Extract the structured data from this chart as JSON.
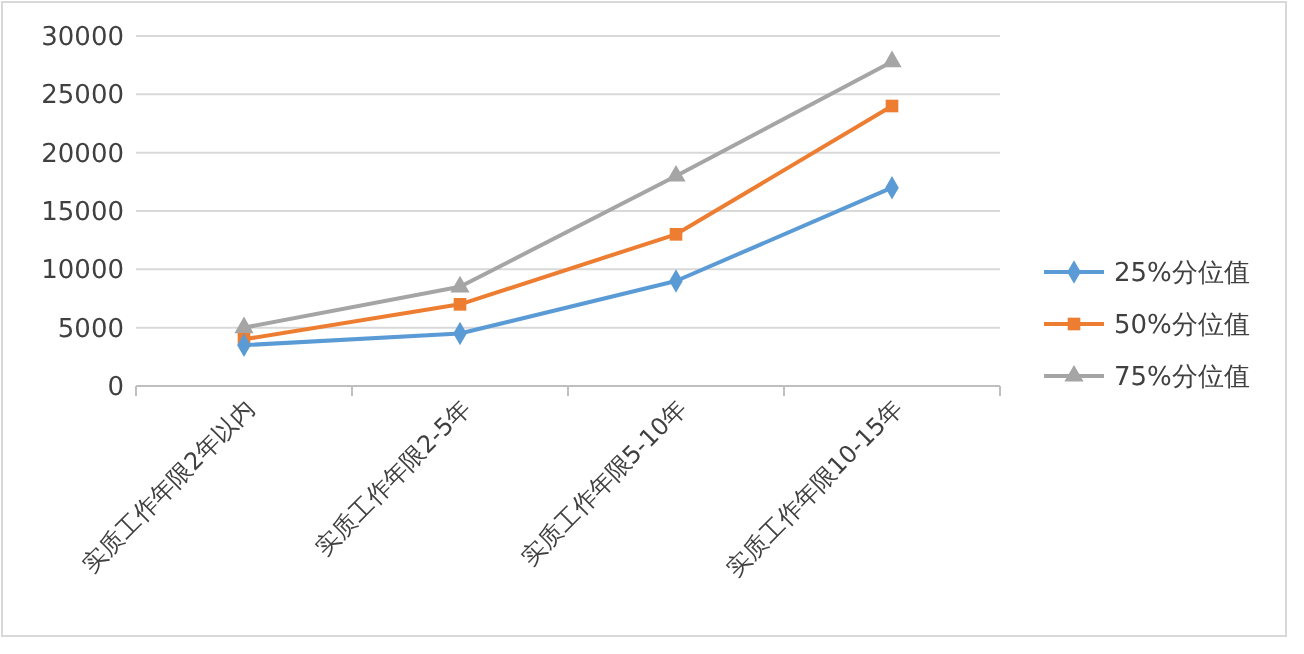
{
  "chart_data": {
    "type": "line",
    "categories": [
      "实质工作年限2年以内",
      "实质工作年限2-5年",
      "实质工作年限5-10年",
      "实质工作年限10-15年"
    ],
    "series": [
      {
        "name": "25%分位值",
        "color": "#5b9bd5",
        "marker": "diamond",
        "values": [
          3500,
          4500,
          9000,
          17000
        ]
      },
      {
        "name": "50%分位值",
        "color": "#ed7d31",
        "marker": "square",
        "values": [
          4000,
          7000,
          13000,
          24000
        ]
      },
      {
        "name": "75%分位值",
        "color": "#a5a5a5",
        "marker": "triangle",
        "values": [
          5000,
          8500,
          18000,
          27800
        ]
      }
    ],
    "ylim": [
      0,
      30000
    ],
    "yticks": [
      0,
      5000,
      10000,
      15000,
      20000,
      25000,
      30000
    ],
    "grid": "y",
    "legend": "right"
  }
}
